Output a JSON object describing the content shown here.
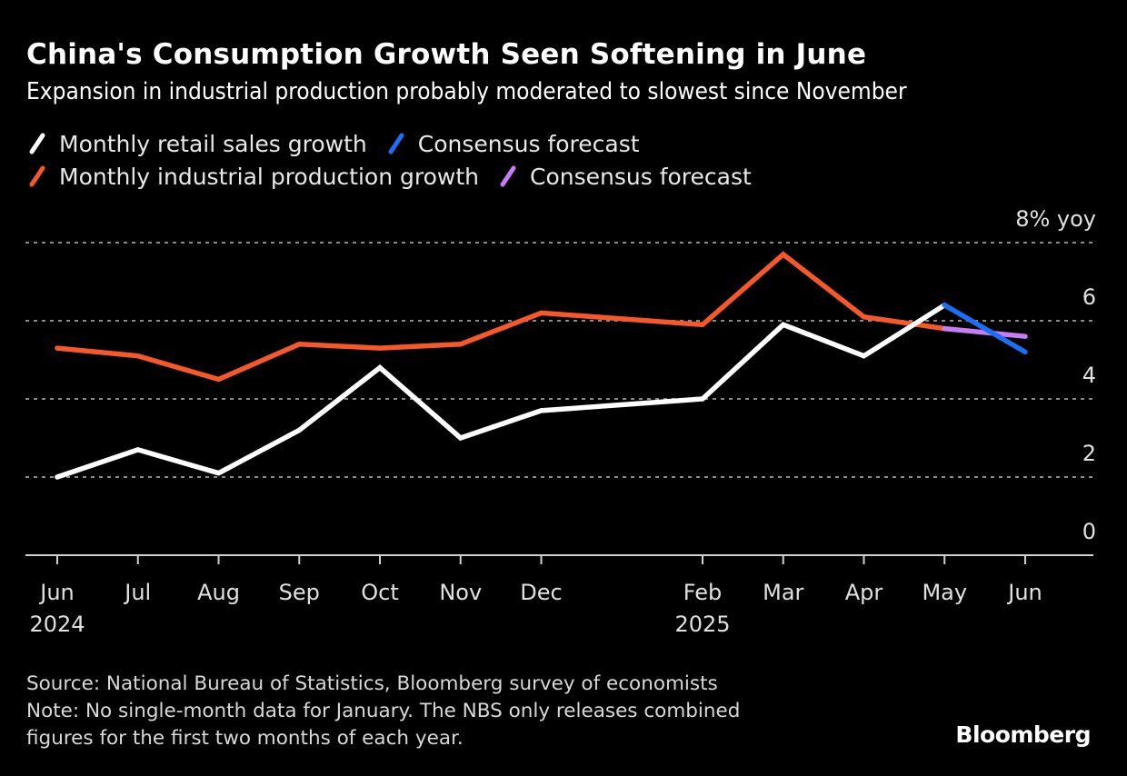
{
  "title": "China's Consumption Growth Seen Softening in June",
  "subtitle": "Expansion in industrial production probably moderated to slowest since November",
  "legend": [
    {
      "label": "Monthly retail sales growth",
      "color": "#ffffff"
    },
    {
      "label": "Consensus forecast",
      "color": "#1a6ff5"
    },
    {
      "label": "Monthly industrial production growth",
      "color": "#f6582a"
    },
    {
      "label": "Consensus forecast",
      "color": "#c77cf5"
    }
  ],
  "footer": {
    "source": "Source: National Bureau of Statistics, Bloomberg survey of economists",
    "note_line1": "Note: No single-month data for January. The NBS only releases combined",
    "note_line2": "figures for the first two months of each year."
  },
  "brand": "Bloomberg",
  "chart_data": {
    "type": "line",
    "title": "China's Consumption Growth Seen Softening in June",
    "subtitle": "Expansion in industrial production probably moderated to slowest since November",
    "xlabel": "",
    "ylabel": "% yoy",
    "ylim": [
      0,
      8
    ],
    "yticks": [
      0,
      2,
      4,
      6,
      8
    ],
    "ytick_labels": [
      "0",
      "2",
      "4",
      "6",
      "8% yoy"
    ],
    "grid": true,
    "legend_position": "top-left",
    "x": [
      "2024-06",
      "2024-07",
      "2024-08",
      "2024-09",
      "2024-10",
      "2024-11",
      "2024-12",
      "2025-02",
      "2025-03",
      "2025-04",
      "2025-05",
      "2025-06"
    ],
    "x_index": [
      0,
      1,
      2,
      3,
      4,
      5,
      6,
      8,
      9,
      10,
      11,
      12
    ],
    "xtick_labels": [
      {
        "month": "Jun",
        "year": "2024"
      },
      {
        "month": "Jul",
        "year": ""
      },
      {
        "month": "Aug",
        "year": ""
      },
      {
        "month": "Sep",
        "year": ""
      },
      {
        "month": "Oct",
        "year": ""
      },
      {
        "month": "Nov",
        "year": ""
      },
      {
        "month": "Dec",
        "year": ""
      },
      {
        "month": "Feb",
        "year": "2025"
      },
      {
        "month": "Mar",
        "year": ""
      },
      {
        "month": "Apr",
        "year": ""
      },
      {
        "month": "May",
        "year": ""
      },
      {
        "month": "Jun",
        "year": ""
      }
    ],
    "series": [
      {
        "name": "Monthly retail sales growth",
        "color": "#ffffff",
        "x_index": [
          0,
          1,
          2,
          3,
          4,
          5,
          6,
          8,
          9,
          10,
          11
        ],
        "values": [
          2.0,
          2.7,
          2.1,
          3.2,
          4.8,
          3.0,
          3.7,
          4.0,
          5.9,
          5.1,
          6.4
        ]
      },
      {
        "name": "Consensus forecast (retail sales)",
        "color": "#1a6ff5",
        "x_index": [
          11,
          12
        ],
        "values": [
          6.4,
          5.2
        ]
      },
      {
        "name": "Monthly industrial production growth",
        "color": "#f6582a",
        "x_index": [
          0,
          1,
          2,
          3,
          4,
          5,
          6,
          8,
          9,
          10,
          11
        ],
        "values": [
          5.3,
          5.1,
          4.5,
          5.4,
          5.3,
          5.4,
          6.2,
          5.9,
          7.7,
          6.1,
          5.8
        ]
      },
      {
        "name": "Consensus forecast (industrial production)",
        "color": "#c77cf5",
        "x_index": [
          11,
          12
        ],
        "values": [
          5.8,
          5.6
        ]
      }
    ]
  }
}
